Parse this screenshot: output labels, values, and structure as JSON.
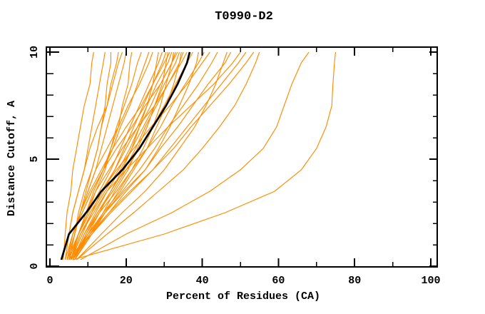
{
  "title": "T0990-D2",
  "chart_data": {
    "type": "line",
    "title": "T0990-D2",
    "xlabel": "Percent of Residues (CA)",
    "ylabel": "Distance Cutoff, A",
    "xlim": [
      0,
      100
    ],
    "ylim": [
      0,
      10
    ],
    "x_major_ticks": [
      0,
      20,
      40,
      60,
      80,
      100
    ],
    "x_minor_tick_step": 10,
    "y_major_ticks": [
      0,
      5,
      10
    ],
    "y_minor_tick_step": 1,
    "grid": false,
    "legend": "none",
    "model_color": "#FF8C00",
    "highlight_color": "#000000",
    "frame_color": "#000000",
    "cutoffs": [
      0.3,
      1.5,
      2.5,
      3.5,
      4.5,
      5.5,
      6.5,
      7.5,
      8.5,
      9.5,
      10
    ],
    "highlight_series": [
      3,
      5,
      9.5,
      13.5,
      19,
      23.5,
      27,
      30.5,
      33.5,
      36,
      36.7
    ],
    "model_series": [
      [
        3.5,
        4,
        4.5,
        5.5,
        6,
        7,
        8,
        9,
        10.5,
        11,
        11.5
      ],
      [
        4,
        5,
        6,
        7.5,
        9,
        10,
        11,
        12,
        13,
        14,
        14.5
      ],
      [
        4.5,
        6.5,
        8,
        9.5,
        11,
        12.5,
        13.5,
        14.5,
        15,
        16,
        16
      ],
      [
        5,
        6.5,
        7.5,
        9,
        11,
        12.5,
        13.5,
        15,
        16,
        17.5,
        18
      ],
      [
        4,
        5,
        6,
        7.5,
        9,
        10.5,
        12.5,
        15,
        16.5,
        18,
        19
      ],
      [
        5,
        6.5,
        8,
        10,
        12,
        13.5,
        15,
        16.5,
        18,
        19.5,
        20
      ],
      [
        4.5,
        7.5,
        10,
        12,
        14.5,
        16,
        18,
        19,
        20.5,
        21,
        21.5
      ],
      [
        5.5,
        7.5,
        9.5,
        11.5,
        14,
        16,
        17.5,
        19.5,
        21.5,
        23,
        24
      ],
      [
        4,
        6,
        8.5,
        11,
        14,
        16.5,
        18.5,
        21,
        23,
        25,
        26
      ],
      [
        5,
        6.5,
        8,
        10,
        12,
        15,
        18,
        20.5,
        23.5,
        26,
        27
      ],
      [
        6,
        10,
        13,
        16,
        19,
        21.5,
        23.5,
        25.5,
        27,
        28,
        28.5
      ],
      [
        5,
        7.5,
        10,
        13,
        16,
        18.5,
        21,
        23.5,
        26,
        28.5,
        29.5
      ],
      [
        5.5,
        8,
        11,
        13.5,
        17,
        19.5,
        22,
        24.5,
        27,
        29.5,
        30.5
      ],
      [
        6,
        10.5,
        14,
        17,
        20.5,
        23,
        25.5,
        27.5,
        29.5,
        30.5,
        31
      ],
      [
        4.5,
        6,
        8,
        10.5,
        13.5,
        16.5,
        20,
        24,
        27,
        30,
        31.5
      ],
      [
        5,
        7.5,
        10.5,
        14,
        17,
        20,
        23,
        25.5,
        28,
        31,
        32
      ],
      [
        6.5,
        11,
        14.5,
        18,
        21.5,
        24.5,
        27,
        29,
        30.5,
        32,
        32.5
      ],
      [
        5.5,
        8.5,
        11,
        14.5,
        18,
        21,
        23.5,
        26.5,
        29,
        32,
        33
      ],
      [
        4.5,
        6,
        8.5,
        11,
        14,
        17.5,
        21.5,
        25,
        29,
        32,
        33.5
      ],
      [
        6,
        9,
        12,
        15,
        18.5,
        21.5,
        24.5,
        27.5,
        30,
        33,
        34
      ],
      [
        5,
        10,
        14,
        18.5,
        22,
        25.5,
        28,
        30.5,
        32.5,
        34,
        34.5
      ],
      [
        6.5,
        9.5,
        12.5,
        16,
        19.5,
        22.5,
        25,
        28,
        31,
        34,
        35
      ],
      [
        5.5,
        7.5,
        9.5,
        12,
        15.5,
        19,
        23,
        27.5,
        31,
        34.5,
        36
      ],
      [
        6,
        9,
        12.5,
        16.5,
        20,
        23.5,
        27,
        30,
        33,
        36,
        37.5
      ],
      [
        5,
        11,
        15.5,
        20,
        25,
        28.5,
        31.5,
        34,
        36.5,
        38.5,
        39
      ],
      [
        6,
        9.5,
        13,
        17.5,
        21.5,
        25.5,
        29,
        32,
        35.5,
        39,
        40.5
      ],
      [
        5.5,
        7.5,
        10,
        13.5,
        17.5,
        22,
        26.5,
        31.5,
        36,
        40,
        42
      ],
      [
        6.5,
        10.5,
        14.5,
        19,
        23.5,
        27.5,
        31,
        35,
        39,
        42.5,
        44
      ],
      [
        7,
        13.5,
        19,
        25,
        30,
        34,
        38,
        41,
        43.5,
        45.5,
        46.5
      ],
      [
        6,
        10,
        14.5,
        19.5,
        25,
        29,
        33.5,
        37.5,
        41.5,
        46,
        47.5
      ],
      [
        5.5,
        8,
        11.5,
        15,
        20,
        25.5,
        31,
        37,
        43,
        48,
        50
      ],
      [
        6.5,
        11,
        16,
        21.5,
        27,
        31.5,
        36,
        40.5,
        45,
        49.5,
        51.5
      ],
      [
        5.5,
        10.5,
        15.5,
        21,
        27,
        32.5,
        37,
        42,
        47,
        51.5,
        53.5
      ],
      [
        7,
        15,
        22,
        28.5,
        35,
        40,
        44.5,
        48.5,
        51.5,
        54,
        55
      ],
      [
        8,
        20,
        32,
        42,
        50,
        56,
        59.5,
        61.5,
        63.5,
        66,
        68
      ],
      [
        6,
        30,
        46,
        59,
        66,
        70,
        72.5,
        74,
        74.3,
        74.7,
        75
      ]
    ]
  }
}
